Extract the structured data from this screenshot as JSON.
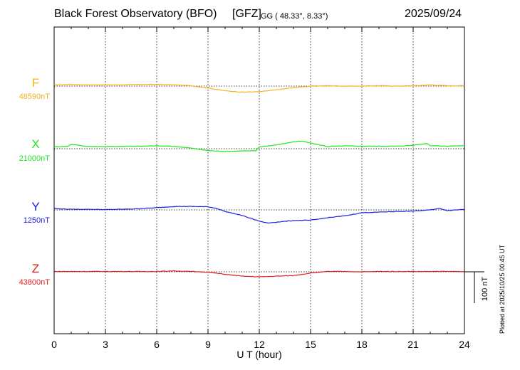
{
  "header": {
    "title": "Black Forest Observatory (BFO)",
    "institute": "[GFZ]",
    "coords": "GG ( 48.33°,   8.33°)",
    "date": "2025/09/24"
  },
  "plotted_note": "Plotted at 2025/10/25 00:45 UT",
  "scale_bar_label": "100 nT",
  "chart_data": {
    "type": "line",
    "title": "Black Forest Observatory (BFO)",
    "xlabel": "U T (hour)",
    "xlim": [
      0,
      24
    ],
    "xticks": [
      "0",
      "3",
      "6",
      "9",
      "12",
      "15",
      "18",
      "21",
      "24"
    ],
    "grid": true,
    "scale_nT": 100,
    "series": [
      {
        "name": "F",
        "baseline_label": "48590nT",
        "baseline": 48590,
        "color": "#f2b21e",
        "x": [
          0,
          1,
          2,
          3,
          4,
          5,
          6,
          7,
          8,
          9,
          10,
          11,
          12,
          13,
          14,
          15,
          16,
          17,
          18,
          19,
          20,
          21,
          22,
          23,
          24
        ],
        "y": [
          48594,
          48595,
          48594,
          48594,
          48594,
          48595,
          48595,
          48594,
          48591,
          48584,
          48575,
          48571,
          48572,
          48578,
          48585,
          48590,
          48591,
          48590,
          48590,
          48591,
          48590,
          48591,
          48594,
          48591,
          48591
        ]
      },
      {
        "name": "X",
        "baseline_label": "21000nT",
        "baseline": 21000,
        "color": "#1ee61e",
        "x": [
          0,
          0.8,
          1,
          2,
          3,
          4,
          5,
          6,
          7,
          8,
          8.5,
          9,
          10,
          11,
          11.8,
          12,
          13,
          14,
          14.5,
          15,
          16,
          17,
          18,
          19,
          20,
          21,
          21.8,
          22,
          23,
          24
        ],
        "y": [
          21006,
          21008,
          21014,
          21007,
          21007,
          21008,
          21008,
          21009,
          21008,
          21002,
          20998,
          20994,
          20991,
          20993,
          20993,
          21006,
          21012,
          21022,
          21024,
          21018,
          21007,
          21009,
          21008,
          21008,
          21008,
          21011,
          21017,
          21010,
          21008,
          21010
        ]
      },
      {
        "name": "Y",
        "baseline_label": "1250nT",
        "baseline": 1250,
        "color": "#1e1ee0",
        "x": [
          0,
          1,
          2,
          3,
          4,
          5,
          6,
          7,
          8,
          9,
          9.5,
          10,
          11,
          12,
          12.5,
          13,
          14,
          15,
          16,
          17,
          18,
          19,
          20,
          21,
          22,
          22.5,
          23,
          24
        ],
        "y": [
          1254,
          1252,
          1252,
          1251,
          1252,
          1254,
          1257,
          1261,
          1261,
          1260,
          1255,
          1245,
          1232,
          1214,
          1208,
          1211,
          1216,
          1217,
          1225,
          1231,
          1241,
          1243,
          1245,
          1246,
          1250,
          1255,
          1248,
          1252
        ]
      },
      {
        "name": "Z",
        "baseline_label": "43800nT",
        "baseline": 43800,
        "color": "#e01e1e",
        "x": [
          0,
          1,
          2,
          3,
          4,
          5,
          6,
          7,
          8,
          9,
          10,
          11,
          12,
          13,
          14,
          15,
          16,
          17,
          18,
          19,
          20,
          21,
          22,
          23,
          24
        ],
        "y": [
          43801,
          43801,
          43801,
          43801,
          43801,
          43801,
          43801,
          43803,
          43801,
          43799,
          43792,
          43786,
          43784,
          43786,
          43788,
          43796,
          43801,
          43801,
          43800,
          43801,
          43801,
          43801,
          43801,
          43801,
          43801
        ]
      }
    ]
  }
}
